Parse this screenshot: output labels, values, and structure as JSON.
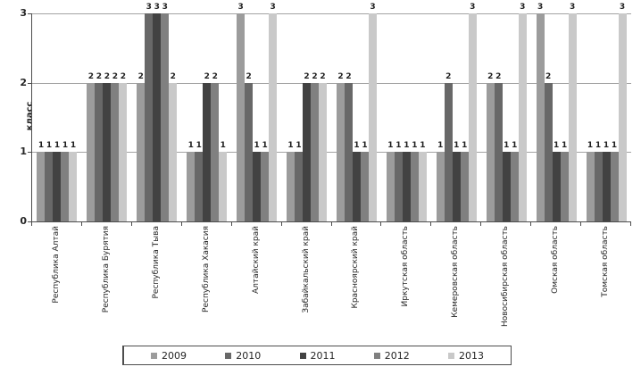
{
  "chart_data": {
    "type": "bar",
    "title": "",
    "xlabel": "",
    "ylabel": "класс",
    "ylim": [
      0,
      3
    ],
    "yticks": [
      0,
      1,
      2,
      3
    ],
    "gridlines": [
      1,
      2,
      3
    ],
    "grid": true,
    "data_labels": true,
    "legend_position": "bottom",
    "categories": [
      "Республика Алтай",
      "Республика Бурятия",
      "Республика Тыва",
      "Республика Хакасия",
      "Алтайский край",
      "Забайкальский край",
      "Красноярский край",
      "Иркутская область",
      "Кемеровская область",
      "Новосибирская область",
      "Омская область",
      "Томская область"
    ],
    "series": [
      {
        "name": "2009",
        "color": "#9c9c9c",
        "values": [
          1,
          2,
          2,
          1,
          3,
          1,
          2,
          1,
          1,
          2,
          3,
          1
        ]
      },
      {
        "name": "2010",
        "color": "#686868",
        "values": [
          1,
          2,
          3,
          1,
          2,
          1,
          2,
          1,
          2,
          2,
          2,
          1
        ]
      },
      {
        "name": "2011",
        "color": "#424242",
        "values": [
          1,
          2,
          3,
          2,
          1,
          2,
          1,
          1,
          1,
          1,
          1,
          1
        ]
      },
      {
        "name": "2012",
        "color": "#808080",
        "values": [
          1,
          2,
          3,
          2,
          1,
          2,
          1,
          1,
          1,
          1,
          1,
          1
        ]
      },
      {
        "name": "2013",
        "color": "#c9c9c9",
        "values": [
          1,
          2,
          2,
          1,
          3,
          2,
          3,
          1,
          3,
          3,
          3,
          3
        ]
      }
    ],
    "colors": {
      "axis": "#4d4d4d",
      "gridline": "#a3a3a3",
      "text": "#262626"
    }
  }
}
